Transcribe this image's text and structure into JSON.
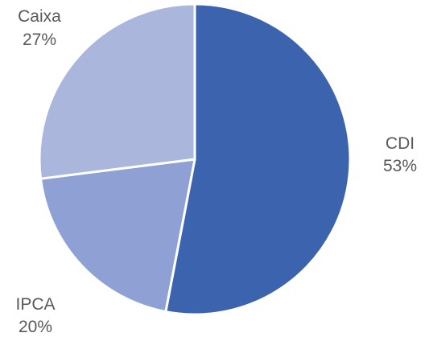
{
  "chart_data": {
    "type": "pie",
    "slices": [
      {
        "label": "CDI",
        "value": 53,
        "value_label": "53%",
        "color": "#3C63AD"
      },
      {
        "label": "IPCA",
        "value": 20,
        "value_label": "20%",
        "color": "#8FA1D4"
      },
      {
        "label": "Caixa",
        "value": 27,
        "value_label": "27%",
        "color": "#AAB6DB"
      }
    ],
    "start": "12 o'clock",
    "direction": "clockwise",
    "legend": "none",
    "label_color": "#595959"
  }
}
